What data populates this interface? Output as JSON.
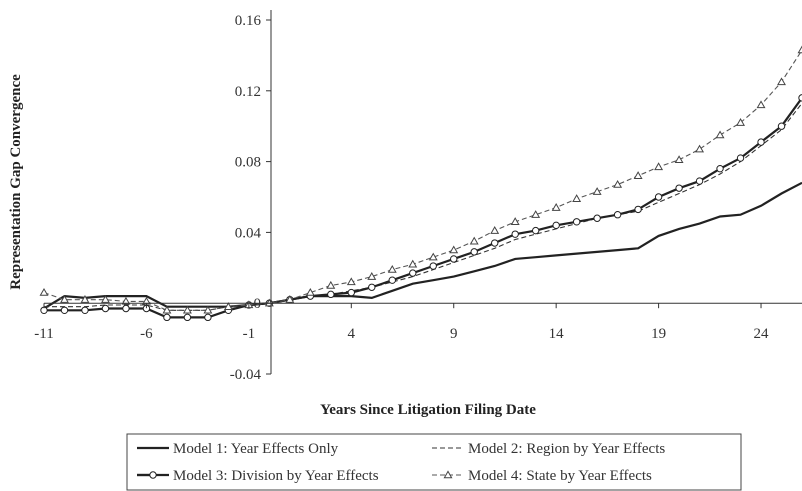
{
  "chart_data": {
    "type": "line",
    "title": "",
    "xlabel": "Years Since Litigation Filing Date",
    "ylabel": "Representation Gap Convergence",
    "xlim": [
      -11,
      26
    ],
    "ylim": [
      -0.04,
      0.16
    ],
    "x_ticks": [
      -11,
      -6,
      -1,
      4,
      9,
      14,
      19,
      24
    ],
    "x_tick_labels": [
      "-11",
      "-6",
      "-1",
      "4",
      "9",
      "14",
      "19",
      "24"
    ],
    "y_ticks": [
      -0.04,
      0,
      0.04,
      0.08,
      0.12,
      0.16
    ],
    "y_tick_labels": [
      "-0.04",
      "0",
      "0.04",
      "0.08",
      "0.12",
      "0.16"
    ],
    "legend_position": "bottom",
    "grid": false,
    "x": [
      -11,
      -10,
      -9,
      -8,
      -7,
      -6,
      -5,
      -4,
      -3,
      -2,
      -1,
      0,
      1,
      2,
      3,
      4,
      5,
      6,
      7,
      8,
      9,
      10,
      11,
      12,
      13,
      14,
      15,
      16,
      17,
      18,
      19,
      20,
      21,
      22,
      23,
      24,
      25,
      26
    ],
    "series": [
      {
        "name": "Model 1: Year Effects Only",
        "style": "solid-thick",
        "marker": "none",
        "color": "#222222",
        "values": [
          -0.003,
          0.004,
          0.003,
          0.004,
          0.004,
          0.004,
          -0.002,
          -0.002,
          -0.002,
          -0.002,
          -0.001,
          0.0,
          0.002,
          0.004,
          0.004,
          0.004,
          0.003,
          0.007,
          0.011,
          0.013,
          0.015,
          0.018,
          0.021,
          0.025,
          0.026,
          0.027,
          0.028,
          0.029,
          0.03,
          0.031,
          0.038,
          0.042,
          0.045,
          0.049,
          0.05,
          0.055,
          0.062,
          0.068
        ]
      },
      {
        "name": "Model 2: Region by Year Effects",
        "style": "dashed",
        "marker": "none",
        "color": "#333333",
        "values": [
          -0.002,
          -0.002,
          -0.002,
          -0.001,
          -0.001,
          -0.001,
          -0.004,
          -0.004,
          -0.004,
          -0.002,
          -0.001,
          0.0,
          0.002,
          0.004,
          0.005,
          0.007,
          0.009,
          0.012,
          0.015,
          0.019,
          0.023,
          0.027,
          0.031,
          0.036,
          0.039,
          0.042,
          0.045,
          0.048,
          0.05,
          0.052,
          0.057,
          0.062,
          0.067,
          0.073,
          0.08,
          0.089,
          0.098,
          0.113
        ]
      },
      {
        "name": "Model 3: Division by Year Effects",
        "style": "solid-thick",
        "marker": "circle",
        "color": "#222222",
        "values": [
          -0.004,
          -0.004,
          -0.004,
          -0.003,
          -0.003,
          -0.003,
          -0.008,
          -0.008,
          -0.008,
          -0.004,
          -0.001,
          0.0,
          0.002,
          0.004,
          0.005,
          0.006,
          0.009,
          0.013,
          0.017,
          0.021,
          0.025,
          0.029,
          0.034,
          0.039,
          0.041,
          0.044,
          0.046,
          0.048,
          0.05,
          0.053,
          0.06,
          0.065,
          0.069,
          0.076,
          0.082,
          0.091,
          0.1,
          0.116
        ]
      },
      {
        "name": "Model 4: State by Year Effects",
        "style": "dashed",
        "marker": "triangle",
        "color": "#555555",
        "values": [
          0.006,
          0.002,
          0.002,
          0.002,
          0.001,
          0.001,
          -0.004,
          -0.004,
          -0.004,
          -0.002,
          -0.001,
          0.0,
          0.002,
          0.006,
          0.01,
          0.012,
          0.015,
          0.019,
          0.022,
          0.026,
          0.03,
          0.035,
          0.041,
          0.046,
          0.05,
          0.054,
          0.059,
          0.063,
          0.067,
          0.072,
          0.077,
          0.081,
          0.087,
          0.095,
          0.102,
          0.112,
          0.125,
          0.143
        ]
      }
    ]
  }
}
